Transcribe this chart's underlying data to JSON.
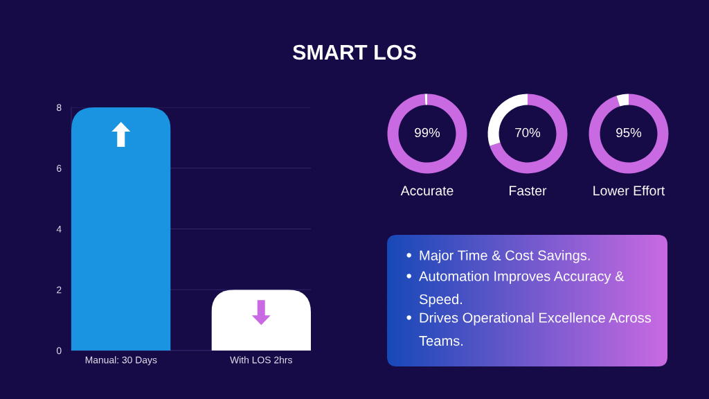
{
  "chart_data": [
    {
      "type": "bar",
      "title": "SMART LOS",
      "categories": [
        "Manual: 30 Days",
        "With LOS 2hrs"
      ],
      "values": [
        8,
        2
      ],
      "colors": [
        "#1a94e0",
        "#ffffff"
      ],
      "ylim": [
        0,
        8
      ],
      "yticks": [
        0,
        2,
        4,
        6,
        8
      ],
      "grid": "y"
    },
    {
      "type": "donut",
      "title": "Accurate",
      "categories": [
        null,
        null
      ],
      "values": [
        99,
        1
      ],
      "colors": [
        "#c96ae2",
        "#ffffff"
      ],
      "value_labels": [
        "99%",
        null
      ]
    },
    {
      "type": "donut",
      "title": "Faster",
      "categories": [
        null,
        null
      ],
      "values": [
        70,
        30
      ],
      "colors": [
        "#c96ae2",
        "#ffffff"
      ],
      "value_labels": [
        "70%",
        null
      ]
    },
    {
      "type": "donut",
      "title": "Lower Effort",
      "categories": [
        null,
        null
      ],
      "values": [
        95,
        5
      ],
      "colors": [
        "#c96ae2",
        "#ffffff"
      ],
      "value_labels": [
        "95%",
        null
      ]
    },
    {
      "type": "other",
      "annotations": [
        "Major Time & Cost Savings.",
        "Automation Improves Accuracy & Speed.",
        "Drives Operational Excellence Across Teams."
      ]
    }
  ]
}
